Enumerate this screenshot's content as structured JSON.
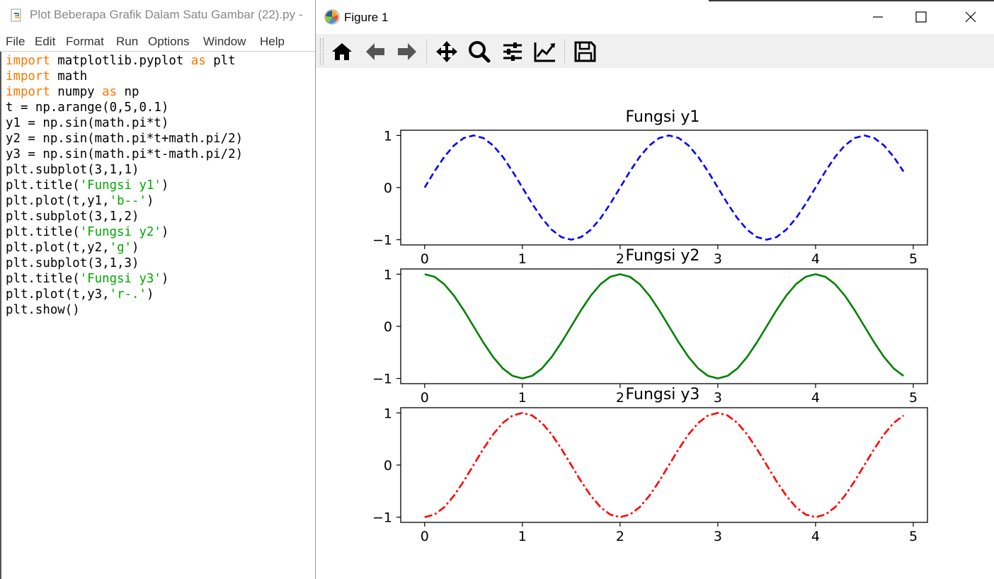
{
  "editor": {
    "title": "Plot Beberapa Grafik Dalam Satu Gambar (22).py -",
    "menu": [
      "File",
      "Edit",
      "Format",
      "Run",
      "Options",
      "Window",
      "Help"
    ],
    "code_lines": [
      [
        [
          "import",
          "kw"
        ],
        [
          " matplotlib.pyplot ",
          ""
        ],
        [
          "as",
          "kw"
        ],
        [
          " plt",
          ""
        ]
      ],
      [
        [
          "import",
          "kw"
        ],
        [
          " math",
          ""
        ]
      ],
      [
        [
          "import",
          "kw"
        ],
        [
          " numpy ",
          ""
        ],
        [
          "as",
          "kw"
        ],
        [
          " np",
          ""
        ]
      ],
      [
        [
          "t = np.arange(0,5,0.1)",
          ""
        ]
      ],
      [
        [
          "y1 = np.sin(math.pi*t)",
          ""
        ]
      ],
      [
        [
          "y2 = np.sin(math.pi*t+math.pi/2)",
          ""
        ]
      ],
      [
        [
          "y3 = np.sin(math.pi*t-math.pi/2)",
          ""
        ]
      ],
      [
        [
          "plt.subplot(3,1,1)",
          ""
        ]
      ],
      [
        [
          "plt.title(",
          ""
        ],
        [
          "'Fungsi y1'",
          "str"
        ],
        [
          ")",
          ""
        ]
      ],
      [
        [
          "plt.plot(t,y1,",
          ""
        ],
        [
          "'b--'",
          "str"
        ],
        [
          ")",
          ""
        ]
      ],
      [
        [
          "plt.subplot(3,1,2)",
          ""
        ]
      ],
      [
        [
          "plt.title(",
          ""
        ],
        [
          "'Fungsi y2'",
          "str"
        ],
        [
          ")",
          ""
        ]
      ],
      [
        [
          "plt.plot(t,y2,",
          ""
        ],
        [
          "'g'",
          "str"
        ],
        [
          ")",
          ""
        ]
      ],
      [
        [
          "plt.subplot(3,1,3)",
          ""
        ]
      ],
      [
        [
          "plt.title(",
          ""
        ],
        [
          "'Fungsi y3'",
          "str"
        ],
        [
          ")",
          ""
        ]
      ],
      [
        [
          "plt.plot(t,y3,",
          ""
        ],
        [
          "'r-.'",
          "str"
        ],
        [
          ")",
          ""
        ]
      ],
      [
        [
          "plt.show()",
          ""
        ]
      ]
    ]
  },
  "figure": {
    "title": "Figure 1",
    "toolbar": [
      "home-icon",
      "back-icon",
      "forward-icon",
      "pan-icon",
      "zoom-icon",
      "configure-subplots-icon",
      "edit-axis-icon",
      "save-icon"
    ]
  },
  "chart_data": [
    {
      "type": "line",
      "title": "Fungsi y1",
      "xlabel": "",
      "ylabel": "",
      "x": [
        0.0,
        0.1,
        0.2,
        0.3,
        0.4,
        0.5,
        0.6,
        0.7,
        0.8,
        0.9,
        1.0,
        1.1,
        1.2,
        1.3,
        1.4,
        1.5,
        1.6,
        1.7,
        1.8,
        1.9,
        2.0,
        2.1,
        2.2,
        2.3,
        2.4,
        2.5,
        2.6,
        2.7,
        2.8,
        2.9,
        3.0,
        3.1,
        3.2,
        3.3,
        3.4,
        3.5,
        3.6,
        3.7,
        3.8,
        3.9,
        4.0,
        4.1,
        4.2,
        4.3,
        4.4,
        4.5,
        4.6,
        4.7,
        4.8,
        4.9
      ],
      "series": [
        {
          "values": [
            0.0,
            0.309,
            0.588,
            0.809,
            0.951,
            1.0,
            0.951,
            0.809,
            0.588,
            0.309,
            0.0,
            -0.309,
            -0.588,
            -0.809,
            -0.951,
            -1.0,
            -0.951,
            -0.809,
            -0.588,
            -0.309,
            0.0,
            0.309,
            0.588,
            0.809,
            0.951,
            1.0,
            0.951,
            0.809,
            0.588,
            0.309,
            0.0,
            -0.309,
            -0.588,
            -0.809,
            -0.951,
            -1.0,
            -0.951,
            -0.809,
            -0.588,
            -0.309,
            0.0,
            0.309,
            0.588,
            0.809,
            0.951,
            1.0,
            0.951,
            0.809,
            0.588,
            0.309
          ],
          "color": "#0000ff",
          "style": "dashed"
        }
      ],
      "xticks": [
        "0",
        "1",
        "2",
        "3",
        "4",
        "5"
      ],
      "yticks": [
        "1",
        "0",
        "−1"
      ],
      "xlim": [
        -0.245,
        5.145
      ],
      "ylim": [
        -1.1,
        1.1
      ],
      "grid": false
    },
    {
      "type": "line",
      "title": "Fungsi y2",
      "xlabel": "",
      "ylabel": "",
      "x": [
        0.0,
        0.1,
        0.2,
        0.3,
        0.4,
        0.5,
        0.6,
        0.7,
        0.8,
        0.9,
        1.0,
        1.1,
        1.2,
        1.3,
        1.4,
        1.5,
        1.6,
        1.7,
        1.8,
        1.9,
        2.0,
        2.1,
        2.2,
        2.3,
        2.4,
        2.5,
        2.6,
        2.7,
        2.8,
        2.9,
        3.0,
        3.1,
        3.2,
        3.3,
        3.4,
        3.5,
        3.6,
        3.7,
        3.8,
        3.9,
        4.0,
        4.1,
        4.2,
        4.3,
        4.4,
        4.5,
        4.6,
        4.7,
        4.8,
        4.9
      ],
      "series": [
        {
          "values": [
            1.0,
            0.951,
            0.809,
            0.588,
            0.309,
            0.0,
            -0.309,
            -0.588,
            -0.809,
            -0.951,
            -1.0,
            -0.951,
            -0.809,
            -0.588,
            -0.309,
            0.0,
            0.309,
            0.588,
            0.809,
            0.951,
            1.0,
            0.951,
            0.809,
            0.588,
            0.309,
            0.0,
            -0.309,
            -0.588,
            -0.809,
            -0.951,
            -1.0,
            -0.951,
            -0.809,
            -0.588,
            -0.309,
            0.0,
            0.309,
            0.588,
            0.809,
            0.951,
            1.0,
            0.951,
            0.809,
            0.588,
            0.309,
            0.0,
            -0.309,
            -0.588,
            -0.809,
            -0.951
          ],
          "color": "#008000",
          "style": "solid"
        }
      ],
      "xticks": [
        "0",
        "1",
        "2",
        "3",
        "4",
        "5"
      ],
      "yticks": [
        "1",
        "0",
        "−1"
      ],
      "xlim": [
        -0.245,
        5.145
      ],
      "ylim": [
        -1.1,
        1.1
      ],
      "grid": false
    },
    {
      "type": "line",
      "title": "Fungsi y3",
      "xlabel": "",
      "ylabel": "",
      "x": [
        0.0,
        0.1,
        0.2,
        0.3,
        0.4,
        0.5,
        0.6,
        0.7,
        0.8,
        0.9,
        1.0,
        1.1,
        1.2,
        1.3,
        1.4,
        1.5,
        1.6,
        1.7,
        1.8,
        1.9,
        2.0,
        2.1,
        2.2,
        2.3,
        2.4,
        2.5,
        2.6,
        2.7,
        2.8,
        2.9,
        3.0,
        3.1,
        3.2,
        3.3,
        3.4,
        3.5,
        3.6,
        3.7,
        3.8,
        3.9,
        4.0,
        4.1,
        4.2,
        4.3,
        4.4,
        4.5,
        4.6,
        4.7,
        4.8,
        4.9
      ],
      "series": [
        {
          "values": [
            -1.0,
            -0.951,
            -0.809,
            -0.588,
            -0.309,
            0.0,
            0.309,
            0.588,
            0.809,
            0.951,
            1.0,
            0.951,
            0.809,
            0.588,
            0.309,
            0.0,
            -0.309,
            -0.588,
            -0.809,
            -0.951,
            -1.0,
            -0.951,
            -0.809,
            -0.588,
            -0.309,
            0.0,
            0.309,
            0.588,
            0.809,
            0.951,
            1.0,
            0.951,
            0.809,
            0.588,
            0.309,
            0.0,
            -0.309,
            -0.588,
            -0.809,
            -0.951,
            -1.0,
            -0.951,
            -0.809,
            -0.588,
            -0.309,
            0.0,
            0.309,
            0.588,
            0.809,
            0.951
          ],
          "color": "#ff0000",
          "style": "dashdot"
        }
      ],
      "xticks": [
        "0",
        "1",
        "2",
        "3",
        "4",
        "5"
      ],
      "yticks": [
        "1",
        "0",
        "−1"
      ],
      "xlim": [
        -0.245,
        5.145
      ],
      "ylim": [
        -1.1,
        1.1
      ],
      "grid": false
    }
  ]
}
